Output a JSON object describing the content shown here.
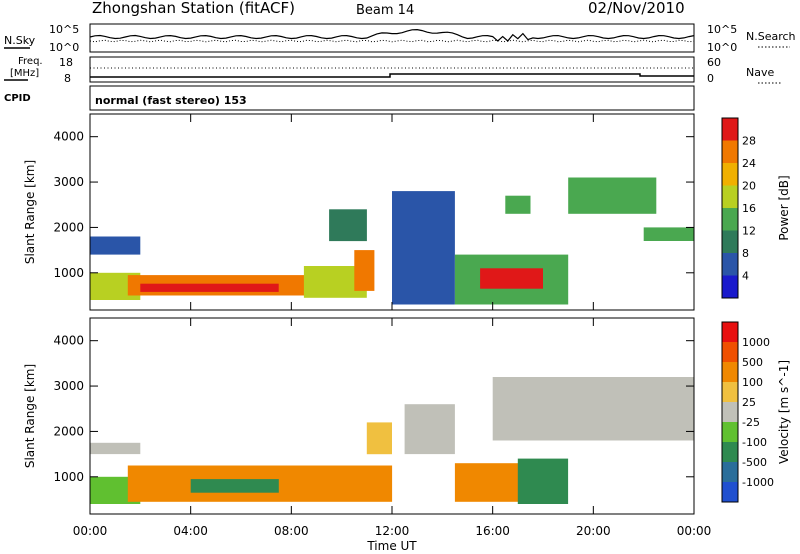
{
  "header": {
    "title": "Zhongshan Station (fitACF)",
    "beam": "Beam 14",
    "date": "02/Nov/2010"
  },
  "noise_panel": {
    "left_label": "N.Sky",
    "left_ticks": [
      "10^5",
      "10^0"
    ],
    "right_label": "N.Search",
    "right_ticks": [
      "10^5",
      "10^0"
    ]
  },
  "freq_panel": {
    "left_label_line1": "Freq.",
    "left_label_line2": "[MHz]",
    "left_ticks": [
      "18",
      "8"
    ],
    "right_label": "Nave",
    "right_ticks": [
      "60",
      "0"
    ]
  },
  "cpid_panel": {
    "label": "CPID",
    "text": "normal (fast stereo) 153"
  },
  "x_axis": {
    "label": "Time UT",
    "ticks": [
      "00:00",
      "04:00",
      "08:00",
      "12:00",
      "16:00",
      "20:00",
      "00:00"
    ],
    "range_hours": [
      0,
      24
    ]
  },
  "chart_data": [
    {
      "type": "heatmap",
      "title": "Power",
      "ylabel": "Slant Range [km]",
      "ylim": [
        180,
        4500
      ],
      "yticks": [
        "1000",
        "2000",
        "3000",
        "4000"
      ],
      "colorbar_label": "Power [dB]",
      "colorbar_ticks": [
        "28",
        "24",
        "20",
        "16",
        "12",
        "8",
        "4"
      ],
      "colors": [
        "#1a1acc",
        "#2a55a8",
        "#2f7a5a",
        "#4aa850",
        "#b8d022",
        "#f0b000",
        "#f07800",
        "#e01818"
      ],
      "regions": [
        {
          "t": [
            0.0,
            2.0
          ],
          "r": [
            400,
            1000
          ],
          "level": 4
        },
        {
          "t": [
            0.0,
            2.0
          ],
          "r": [
            1400,
            1800
          ],
          "level": 1
        },
        {
          "t": [
            1.5,
            8.5
          ],
          "r": [
            500,
            950
          ],
          "level": 6
        },
        {
          "t": [
            2.0,
            7.5
          ],
          "r": [
            580,
            760
          ],
          "level": 7
        },
        {
          "t": [
            8.5,
            11.0
          ],
          "r": [
            450,
            1150
          ],
          "level": 4
        },
        {
          "t": [
            9.5,
            11.0
          ],
          "r": [
            1700,
            2400
          ],
          "level": 2
        },
        {
          "t": [
            10.5,
            11.3
          ],
          "r": [
            600,
            1500
          ],
          "level": 6
        },
        {
          "t": [
            12.0,
            14.5
          ],
          "r": [
            300,
            2800
          ],
          "level": 1
        },
        {
          "t": [
            14.5,
            19.0
          ],
          "r": [
            300,
            1400
          ],
          "level": 3
        },
        {
          "t": [
            15.5,
            18.0
          ],
          "r": [
            650,
            1100
          ],
          "level": 7
        },
        {
          "t": [
            16.5,
            17.5
          ],
          "r": [
            2300,
            2700
          ],
          "level": 3
        },
        {
          "t": [
            19.0,
            22.5
          ],
          "r": [
            2300,
            3100
          ],
          "level": 3
        },
        {
          "t": [
            22.0,
            24.0
          ],
          "r": [
            1700,
            2000
          ],
          "level": 3
        }
      ]
    },
    {
      "type": "heatmap",
      "title": "Velocity",
      "ylabel": "Slant Range [km]",
      "ylim": [
        180,
        4500
      ],
      "yticks": [
        "1000",
        "2000",
        "3000",
        "4000"
      ],
      "colorbar_label": "Velocity [m s^-1]",
      "colorbar_ticks": [
        "1000",
        "500",
        "100",
        "25",
        "-25",
        "-100",
        "-500",
        "-1000"
      ],
      "colors": [
        "#2050d0",
        "#2a6e9a",
        "#2f8a50",
        "#60c030",
        "#c0c0b8",
        "#f0c040",
        "#f08800",
        "#f05000",
        "#e81010"
      ],
      "regions": [
        {
          "t": [
            0.0,
            2.0
          ],
          "r": [
            1500,
            1750
          ],
          "level": 4
        },
        {
          "t": [
            0.0,
            2.0
          ],
          "r": [
            400,
            1000
          ],
          "level": 3
        },
        {
          "t": [
            1.5,
            12.0
          ],
          "r": [
            450,
            1250
          ],
          "level": 6
        },
        {
          "t": [
            4.0,
            7.5
          ],
          "r": [
            650,
            950
          ],
          "level": 2
        },
        {
          "t": [
            11.0,
            12.0
          ],
          "r": [
            1500,
            2200
          ],
          "level": 5
        },
        {
          "t": [
            12.5,
            14.5
          ],
          "r": [
            1500,
            2600
          ],
          "level": 4
        },
        {
          "t": [
            14.5,
            17.5
          ],
          "r": [
            450,
            1300
          ],
          "level": 6
        },
        {
          "t": [
            17.0,
            19.0
          ],
          "r": [
            400,
            1400
          ],
          "level": 2
        },
        {
          "t": [
            16.0,
            24.0
          ],
          "r": [
            1800,
            3200
          ],
          "level": 4
        }
      ]
    }
  ]
}
